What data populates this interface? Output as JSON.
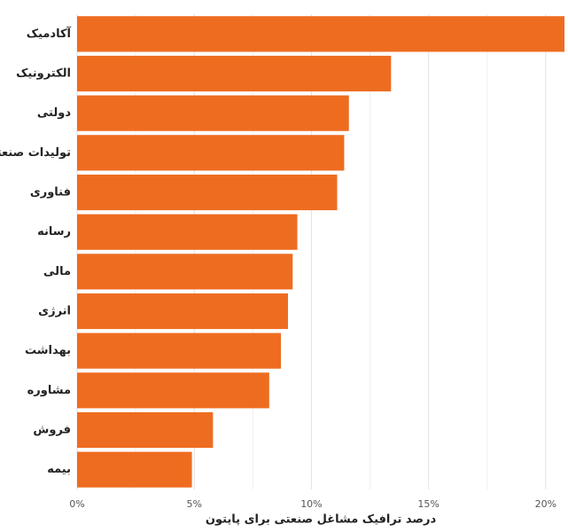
{
  "chart_data": {
    "type": "barh",
    "categories": [
      "آکادمیک",
      "الکترونیک",
      "دولتی",
      "تولیدات صنعتی",
      "فناوری",
      "رسانه",
      "مالی",
      "انرژی",
      "بهداشت",
      "مشاوره",
      "فروش",
      "بیمه"
    ],
    "values": [
      20.8,
      13.4,
      11.6,
      11.4,
      11.1,
      9.4,
      9.2,
      9.0,
      8.7,
      8.2,
      5.8,
      4.9
    ],
    "color": "#ee6c20",
    "xlabel": "درصد ترافیک مشاغل صنعتی برای پایتون",
    "xlim": [
      0,
      20.8
    ],
    "xticks": [
      {
        "value": 0,
        "label": "0%"
      },
      {
        "value": 5,
        "label": "5%"
      },
      {
        "value": 10,
        "label": "10%"
      },
      {
        "value": 15,
        "label": "15%"
      },
      {
        "value": 20,
        "label": "20%"
      }
    ],
    "minor_xticks": [
      2.5,
      7.5,
      12.5,
      17.5
    ],
    "grid": true
  }
}
